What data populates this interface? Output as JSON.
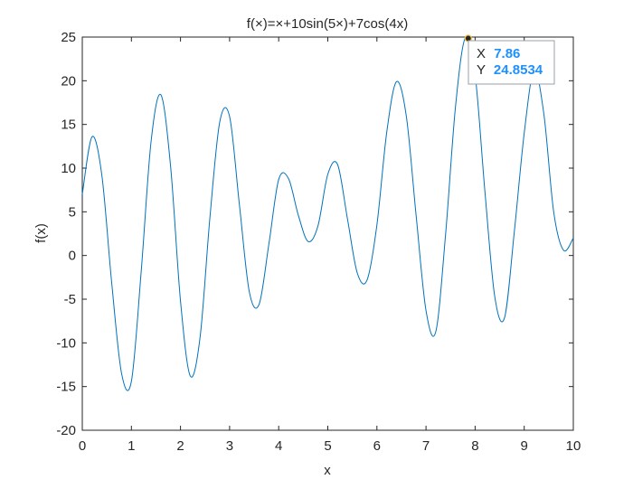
{
  "chart_data": {
    "type": "line",
    "title": "f(×)=×+10sin(5×)+7cos(4x)",
    "xlabel": "x",
    "ylabel": "f(x)",
    "xlim": [
      0,
      10
    ],
    "ylim": [
      -20,
      25
    ],
    "xticks": [
      "0",
      "1",
      "2",
      "3",
      "4",
      "5",
      "6",
      "7",
      "8",
      "9",
      "10"
    ],
    "yticks": [
      "-20",
      "-15",
      "-10",
      "-5",
      "0",
      "5",
      "10",
      "15",
      "20",
      "25"
    ],
    "grid": false,
    "series": [
      {
        "color": "#0072bd",
        "x": [
          0,
          0.2,
          0.4,
          0.6,
          0.8,
          1.0,
          1.2,
          1.4,
          1.6,
          1.8,
          2.0,
          2.2,
          2.4,
          2.6,
          2.8,
          3.0,
          3.2,
          3.4,
          3.6,
          3.8,
          4.0,
          4.2,
          4.4,
          4.6,
          4.8,
          5.0,
          5.2,
          5.4,
          5.6,
          5.8,
          6.0,
          6.2,
          6.4,
          6.6,
          6.8,
          7.0,
          7.2,
          7.4,
          7.6,
          7.8,
          8.0,
          8.2,
          8.4,
          8.6,
          8.8,
          9.0,
          9.2,
          9.4,
          9.6,
          9.8,
          10.0
        ],
        "y": [
          7.0,
          13.6,
          9.1,
          -3.2,
          -13.5,
          -14.4,
          -1.8,
          13.0,
          18.4,
          10.1,
          -5.2,
          -13.8,
          -9.3,
          4.4,
          15.3,
          15.9,
          5.8,
          -4.1,
          -5.6,
          1.3,
          8.7,
          8.8,
          4.6,
          1.6,
          3.4,
          9.3,
          10.4,
          4.2,
          -2.0,
          -2.8,
          3.5,
          14.1,
          19.9,
          15.9,
          4.5,
          -6.3,
          -8.7,
          2.5,
          17.0,
          24.9,
          20.7,
          7.3,
          -4.7,
          -7.1,
          2.8,
          14.0,
          21.2,
          16.2,
          5.0,
          0.6,
          2.0
        ]
      }
    ],
    "datatip": {
      "x_label": "X",
      "x_value": "7.86",
      "y_label": "Y",
      "y_value": "24.8534",
      "point_x": 7.86,
      "point_y": 24.8534
    }
  }
}
